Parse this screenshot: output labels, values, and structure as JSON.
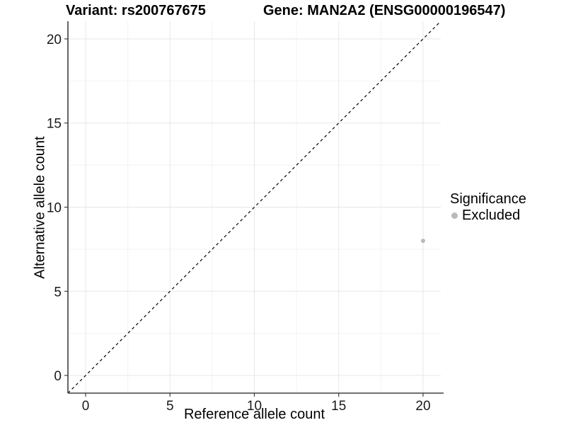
{
  "figure": {
    "title_left": "Variant: rs200767675",
    "title_right": "Gene: MAN2A2 (ENSG00000196547)",
    "background": "#ffffff"
  },
  "chart_data": {
    "type": "scatter",
    "title": "Variant: rs200767675    Gene: MAN2A2 (ENSG00000196547)",
    "xlabel": "Reference allele count",
    "ylabel": "Alternative allele count",
    "xlim": [
      -1.05,
      21.05
    ],
    "ylim": [
      -1.05,
      21.05
    ],
    "x_ticks": [
      0,
      5,
      10,
      15,
      20
    ],
    "y_ticks": [
      0,
      5,
      10,
      15,
      20
    ],
    "x_minor_ticks": [
      2.5,
      7.5,
      12.5,
      17.5
    ],
    "y_minor_ticks": [
      2.5,
      7.5,
      12.5,
      17.5
    ],
    "grid": "major+minor",
    "legend_position": "right",
    "series": [
      {
        "name": "Excluded",
        "color": "#b9b9b9",
        "point_radius": 3,
        "points": [
          {
            "x": 20,
            "y": 8
          }
        ]
      }
    ],
    "reference_line": {
      "kind": "identity y=x",
      "style": "dashed",
      "color": "#000000"
    },
    "legend": {
      "title": "Significance",
      "entries": [
        {
          "label": "Excluded",
          "color": "#b9b9b9"
        }
      ]
    }
  },
  "colors": {
    "grid_major": "#e7e7e7",
    "grid_minor": "#f2f2f2",
    "axis_line": "#404040",
    "tick_mark": "#404040",
    "tick_label": "#1a1a1a",
    "point": "#b9b9b9"
  }
}
